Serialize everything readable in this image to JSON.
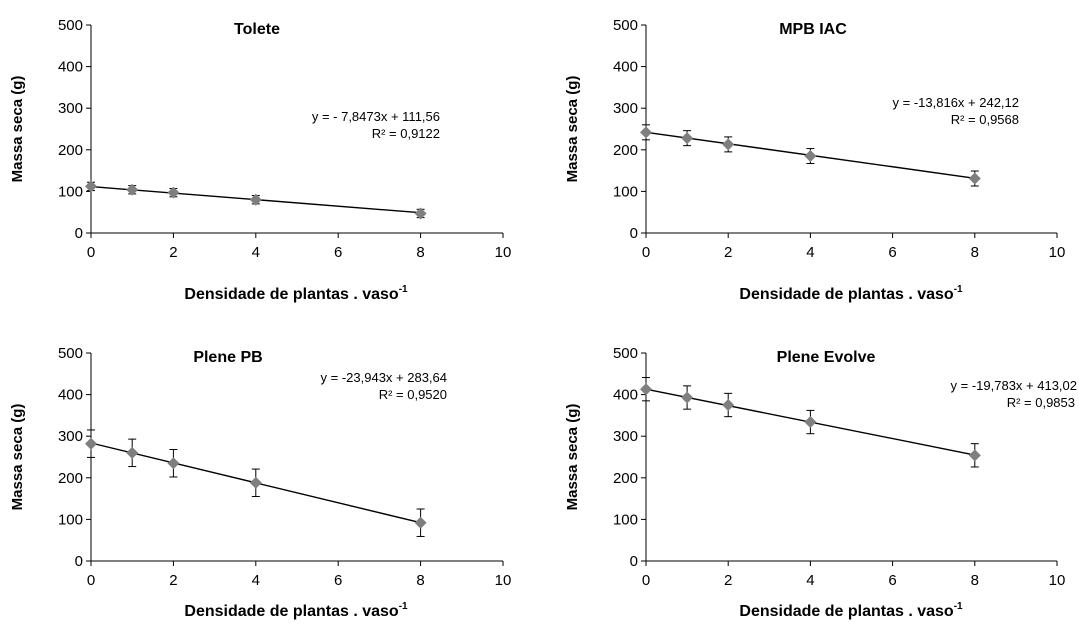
{
  "chart_data": [
    {
      "type": "scatter",
      "title": "Tolete",
      "xlabel": "Densidade de plantas . vaso",
      "xlabel_sup": "-1",
      "ylabel": "Massa seca  (g)",
      "xlim": [
        0,
        10
      ],
      "ylim": [
        0,
        500
      ],
      "xticks": [
        "0",
        "2",
        "4",
        "6",
        "8",
        "10"
      ],
      "yticks": [
        "0",
        "100",
        "200",
        "300",
        "400",
        "500"
      ],
      "x": [
        0,
        1,
        2,
        4,
        8
      ],
      "y": [
        112,
        104,
        97,
        80,
        47
      ],
      "err": [
        10,
        10,
        10,
        10,
        10
      ],
      "trendline": {
        "slope": -7.8473,
        "intercept": 111.56,
        "x_range": [
          0,
          8
        ]
      },
      "equation": "y =  - 7,8473x + 111,56",
      "r2": "R² = 0,9122",
      "grid": false,
      "legend": "none"
    },
    {
      "type": "scatter",
      "title": "MPB IAC",
      "xlabel": "Densidade de plantas . vaso",
      "xlabel_sup": "-1",
      "ylabel": "Massa seca  (g)",
      "xlim": [
        0,
        10
      ],
      "ylim": [
        0,
        500
      ],
      "xticks": [
        "0",
        "2",
        "4",
        "6",
        "8",
        "10"
      ],
      "yticks": [
        "0",
        "100",
        "200",
        "300",
        "400",
        "500"
      ],
      "x": [
        0,
        1,
        2,
        4,
        8
      ],
      "y": [
        242,
        228,
        213,
        185,
        131
      ],
      "err": [
        18,
        18,
        18,
        18,
        18
      ],
      "trendline": {
        "slope": -13.816,
        "intercept": 242.12,
        "x_range": [
          0,
          8
        ]
      },
      "equation": "y = -13,816x + 242,12",
      "r2": "R² = 0,9568",
      "grid": false,
      "legend": "none"
    },
    {
      "type": "scatter",
      "title": "Plene PB",
      "xlabel": "Densidade de plantas . vaso",
      "xlabel_sup": "-1",
      "ylabel": "Massa seca  (g)",
      "xlim": [
        0,
        10
      ],
      "ylim": [
        0,
        500
      ],
      "xticks": [
        "0",
        "2",
        "4",
        "6",
        "8",
        "10"
      ],
      "yticks": [
        "0",
        "100",
        "200",
        "300",
        "400",
        "500"
      ],
      "x": [
        0,
        1,
        2,
        4,
        8
      ],
      "y": [
        282,
        260,
        235,
        188,
        92
      ],
      "err": [
        33,
        33,
        33,
        33,
        33
      ],
      "trendline": {
        "slope": -23.943,
        "intercept": 283.64,
        "x_range": [
          0,
          8
        ]
      },
      "equation": "y = -23,943x + 283,64",
      "r2": "R² = 0,9520",
      "grid": false,
      "legend": "none"
    },
    {
      "type": "scatter",
      "title": "Plene  Evolve",
      "xlabel": "Densidade de plantas . vaso",
      "xlabel_sup": "-1",
      "ylabel": "Massa seca  (g)",
      "xlim": [
        0,
        10
      ],
      "ylim": [
        0,
        500
      ],
      "xticks": [
        "0",
        "2",
        "4",
        "6",
        "8",
        "10"
      ],
      "yticks": [
        "0",
        "100",
        "200",
        "300",
        "400",
        "500"
      ],
      "x": [
        0,
        1,
        2,
        4,
        8
      ],
      "y": [
        413,
        393,
        375,
        334,
        254
      ],
      "err": [
        28,
        28,
        28,
        28,
        28
      ],
      "trendline": {
        "slope": -19.783,
        "intercept": 413.02,
        "x_range": [
          0,
          8
        ]
      },
      "equation": "y = -19,783x + 413,02",
      "r2": "R² = 0,9853",
      "grid": false,
      "legend": "none"
    }
  ]
}
